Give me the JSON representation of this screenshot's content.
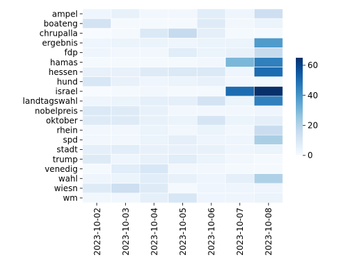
{
  "chart_data": {
    "type": "heatmap",
    "title": "",
    "xlabel": "",
    "ylabel": "",
    "x_categories": [
      "2023-10-02",
      "2023-10-03",
      "2023-10-04",
      "2023-10-05",
      "2023-10-06",
      "2023-10-07",
      "2023-10-08"
    ],
    "y_categories": [
      "ampel",
      "boateng",
      "chrupalla",
      "ergebnis",
      "fdp",
      "hamas",
      "hessen",
      "hund",
      "israel",
      "landtagswahl",
      "nobelpreis",
      "oktober",
      "rhein",
      "spd",
      "stadt",
      "trump",
      "venedig",
      "wahl",
      "wiesn",
      "wm"
    ],
    "values": [
      [
        3,
        5,
        2,
        2,
        7,
        3,
        14
      ],
      [
        12,
        1,
        1,
        1,
        8,
        2,
        4
      ],
      [
        0,
        1,
        9,
        16,
        6,
        1,
        1
      ],
      [
        3,
        4,
        4,
        3,
        4,
        4,
        38
      ],
      [
        3,
        2,
        2,
        7,
        4,
        5,
        16
      ],
      [
        1,
        1,
        1,
        1,
        2,
        30,
        45
      ],
      [
        5,
        5,
        8,
        9,
        9,
        3,
        50
      ],
      [
        10,
        5,
        3,
        4,
        5,
        2,
        2
      ],
      [
        0,
        1,
        2,
        1,
        1,
        50,
        65
      ],
      [
        3,
        4,
        6,
        6,
        12,
        4,
        45
      ],
      [
        9,
        8,
        5,
        2,
        2,
        2,
        3
      ],
      [
        8,
        8,
        5,
        4,
        11,
        4,
        6
      ],
      [
        2,
        2,
        4,
        2,
        4,
        2,
        15
      ],
      [
        2,
        2,
        4,
        6,
        3,
        3,
        22
      ],
      [
        6,
        7,
        5,
        5,
        5,
        3,
        4
      ],
      [
        8,
        3,
        5,
        7,
        4,
        2,
        1
      ],
      [
        1,
        7,
        10,
        2,
        2,
        1,
        1
      ],
      [
        3,
        4,
        7,
        5,
        3,
        6,
        21
      ],
      [
        8,
        14,
        8,
        1,
        3,
        3,
        3
      ],
      [
        2,
        2,
        6,
        10,
        3,
        3,
        4
      ]
    ],
    "vmin": 0,
    "vmax": 65,
    "colormap": "Blues",
    "colorbar_ticks": [
      0,
      20,
      40,
      60
    ]
  }
}
